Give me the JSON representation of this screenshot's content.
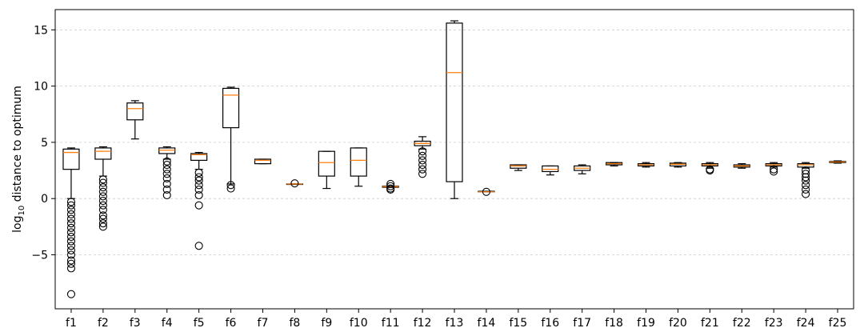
{
  "chart_data": {
    "type": "box",
    "ylabel": {
      "main": "log",
      "sub": "10",
      "rest": " distance to optimum"
    },
    "ylim": [
      -9.8,
      16.8
    ],
    "yticks": [
      -5,
      0,
      5,
      10,
      15
    ],
    "grid_y": true,
    "colors": {
      "median": "#ff7f0e",
      "box": "#000000",
      "grid": "#cccccc"
    },
    "categories": [
      "f1",
      "f2",
      "f3",
      "f4",
      "f5",
      "f6",
      "f7",
      "f8",
      "f9",
      "f10",
      "f11",
      "f12",
      "f13",
      "f14",
      "f15",
      "f16",
      "f17",
      "f18",
      "f19",
      "f20",
      "f21",
      "f22",
      "f23",
      "f24",
      "f25"
    ],
    "boxes": [
      {
        "label": "f1",
        "whislo": 0.0,
        "q1": 2.6,
        "med": 4.1,
        "q3": 4.4,
        "whishi": 4.5,
        "fliers": [
          -0.3,
          -0.6,
          -1.0,
          -1.4,
          -1.8,
          -2.2,
          -2.6,
          -3.0,
          -3.4,
          -3.8,
          -4.2,
          -4.6,
          -5.0,
          -5.5,
          -5.8,
          -6.2,
          -8.5
        ]
      },
      {
        "label": "f2",
        "whislo": 2.0,
        "q1": 3.5,
        "med": 4.2,
        "q3": 4.5,
        "whishi": 4.6,
        "fliers": [
          1.7,
          1.4,
          1.0,
          0.6,
          0.2,
          -0.2,
          -0.6,
          -1.0,
          -1.5,
          -1.8,
          -2.2,
          -2.5
        ]
      },
      {
        "label": "f3",
        "whislo": 5.3,
        "q1": 7.0,
        "med": 8.0,
        "q3": 8.5,
        "whishi": 8.7,
        "fliers": []
      },
      {
        "label": "f4",
        "whislo": 3.5,
        "q1": 4.0,
        "med": 4.3,
        "q3": 4.5,
        "whishi": 4.6,
        "fliers": [
          3.3,
          3.0,
          2.6,
          2.2,
          1.8,
          1.3,
          0.8,
          0.3
        ]
      },
      {
        "label": "f5",
        "whislo": 2.6,
        "q1": 3.4,
        "med": 3.9,
        "q3": 4.0,
        "whishi": 4.1,
        "fliers": [
          2.3,
          1.9,
          1.6,
          1.2,
          0.8,
          0.3,
          -0.6,
          -4.2
        ]
      },
      {
        "label": "f6",
        "whislo": 1.3,
        "q1": 6.3,
        "med": 9.2,
        "q3": 9.8,
        "whishi": 9.9,
        "fliers": [
          1.2,
          0.9
        ]
      },
      {
        "label": "f7",
        "whislo": 3.1,
        "q1": 3.1,
        "med": 3.4,
        "q3": 3.5,
        "whishi": 3.5,
        "fliers": []
      },
      {
        "label": "f8",
        "whislo": 1.3,
        "q1": 1.3,
        "med": 1.3,
        "q3": 1.3,
        "whishi": 1.3,
        "fliers": [
          1.35
        ]
      },
      {
        "label": "f9",
        "whislo": 0.9,
        "q1": 2.0,
        "med": 3.2,
        "q3": 4.2,
        "whishi": 4.2,
        "fliers": []
      },
      {
        "label": "f10",
        "whislo": 1.1,
        "q1": 2.0,
        "med": 3.4,
        "q3": 4.5,
        "whishi": 4.5,
        "fliers": []
      },
      {
        "label": "f11",
        "whislo": 1.0,
        "q1": 1.0,
        "med": 1.05,
        "q3": 1.1,
        "whishi": 1.1,
        "fliers": [
          1.3,
          1.1,
          0.9,
          0.8
        ]
      },
      {
        "label": "f12",
        "whislo": 4.4,
        "q1": 4.7,
        "med": 4.9,
        "q3": 5.1,
        "whishi": 5.5,
        "fliers": [
          4.2,
          3.8,
          3.4,
          3.0,
          2.6,
          2.2
        ]
      },
      {
        "label": "f13",
        "whislo": 0.0,
        "q1": 1.5,
        "med": 11.2,
        "q3": 15.6,
        "whishi": 15.8,
        "fliers": []
      },
      {
        "label": "f14",
        "whislo": 0.6,
        "q1": 0.6,
        "med": 0.6,
        "q3": 0.65,
        "whishi": 0.65,
        "fliers": [
          0.6
        ]
      },
      {
        "label": "f15",
        "whislo": 2.5,
        "q1": 2.7,
        "med": 2.9,
        "q3": 3.0,
        "whishi": 3.0,
        "fliers": []
      },
      {
        "label": "f16",
        "whislo": 2.1,
        "q1": 2.4,
        "med": 2.6,
        "q3": 2.9,
        "whishi": 2.9,
        "fliers": []
      },
      {
        "label": "f17",
        "whislo": 2.2,
        "q1": 2.5,
        "med": 2.7,
        "q3": 2.9,
        "whishi": 3.0,
        "fliers": []
      },
      {
        "label": "f18",
        "whislo": 2.9,
        "q1": 3.0,
        "med": 3.1,
        "q3": 3.2,
        "whishi": 3.2,
        "fliers": []
      },
      {
        "label": "f19",
        "whislo": 2.8,
        "q1": 2.9,
        "med": 3.0,
        "q3": 3.1,
        "whishi": 3.2,
        "fliers": []
      },
      {
        "label": "f20",
        "whislo": 2.8,
        "q1": 2.9,
        "med": 3.05,
        "q3": 3.15,
        "whishi": 3.2,
        "fliers": []
      },
      {
        "label": "f21",
        "whislo": 2.7,
        "q1": 2.9,
        "med": 3.0,
        "q3": 3.1,
        "whishi": 3.2,
        "fliers": [
          2.6,
          2.5
        ]
      },
      {
        "label": "f22",
        "whislo": 2.7,
        "q1": 2.8,
        "med": 2.9,
        "q3": 3.0,
        "whishi": 3.1,
        "fliers": []
      },
      {
        "label": "f23",
        "whislo": 2.8,
        "q1": 2.9,
        "med": 3.0,
        "q3": 3.1,
        "whishi": 3.2,
        "fliers": [
          2.6,
          2.4
        ]
      },
      {
        "label": "f24",
        "whislo": 2.7,
        "q1": 2.8,
        "med": 3.0,
        "q3": 3.1,
        "whishi": 3.2,
        "fliers": [
          2.5,
          2.2,
          1.9,
          1.6,
          1.2,
          0.8,
          0.4
        ]
      },
      {
        "label": "f25",
        "whislo": 3.15,
        "q1": 3.2,
        "med": 3.25,
        "q3": 3.3,
        "whishi": 3.35,
        "fliers": []
      }
    ]
  }
}
